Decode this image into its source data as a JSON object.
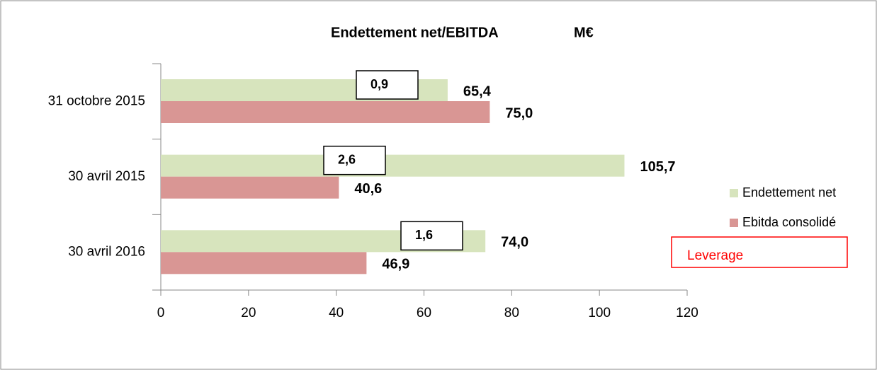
{
  "chart_data": {
    "type": "bar",
    "orientation": "horizontal",
    "title": "Endettement net/EBITDA",
    "title_unit": "M€",
    "categories": [
      "31 octobre 2015",
      "30 avril 2015",
      "30 avril 2016"
    ],
    "series": [
      {
        "name": "Endettement net",
        "color": "#d7e4bd",
        "values": [
          65.4,
          105.7,
          74.0
        ],
        "value_labels": [
          "65,4",
          "105,7",
          "74,0"
        ]
      },
      {
        "name": "Ebitda consolidé",
        "color": "#d99694",
        "values": [
          75.0,
          40.6,
          46.9
        ],
        "value_labels": [
          "75,0",
          "40,6",
          "46,9"
        ]
      }
    ],
    "annotations": {
      "name": "Leverage",
      "color": "#ff0000",
      "labels": [
        "0,9",
        "2,6",
        "1,6"
      ]
    },
    "xlim": [
      0,
      120
    ],
    "xticks": [
      0,
      20,
      40,
      60,
      80,
      100,
      120
    ],
    "grid": false,
    "legend": "right"
  }
}
